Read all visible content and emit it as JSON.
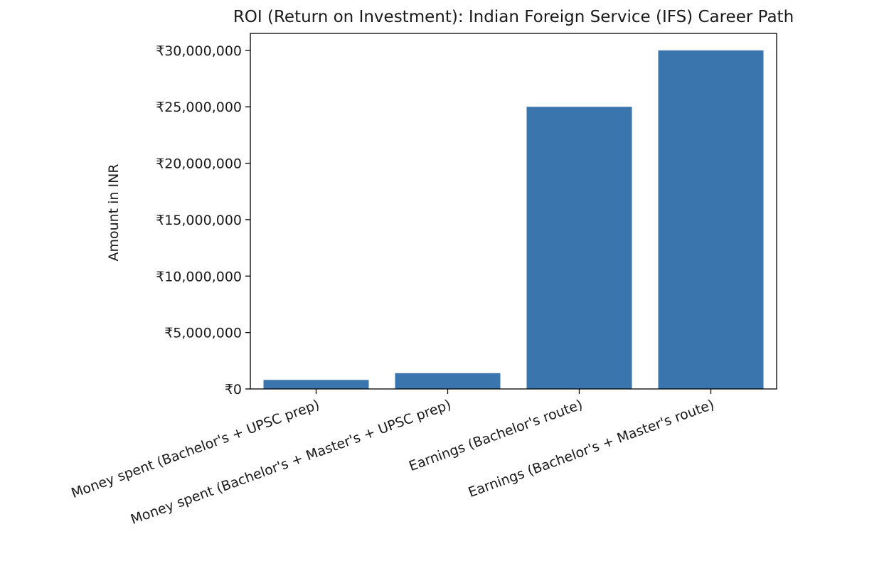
{
  "chart_data": {
    "type": "bar",
    "title": "ROI (Return on Investment): Indian Foreign Service (IFS) Career Path",
    "xlabel": "",
    "ylabel": "Amount in INR",
    "categories": [
      "Money spent (Bachelor's + UPSC prep)",
      "Money spent (Bachelor's + Master's + UPSC prep)",
      "Earnings (Bachelor's route)",
      "Earnings (Bachelor's + Master's route)"
    ],
    "values": [
      800000,
      1400000,
      25000000,
      30000000
    ],
    "ylim": [
      0,
      31500000
    ],
    "yticks": [
      0,
      5000000,
      10000000,
      15000000,
      20000000,
      25000000,
      30000000
    ],
    "ytick_labels": [
      "₹0",
      "₹5,000,000",
      "₹10,000,000",
      "₹15,000,000",
      "₹20,000,000",
      "₹25,000,000",
      "₹30,000,000"
    ],
    "bar_color": "#3a75ae",
    "grid": false,
    "legend": "none"
  }
}
